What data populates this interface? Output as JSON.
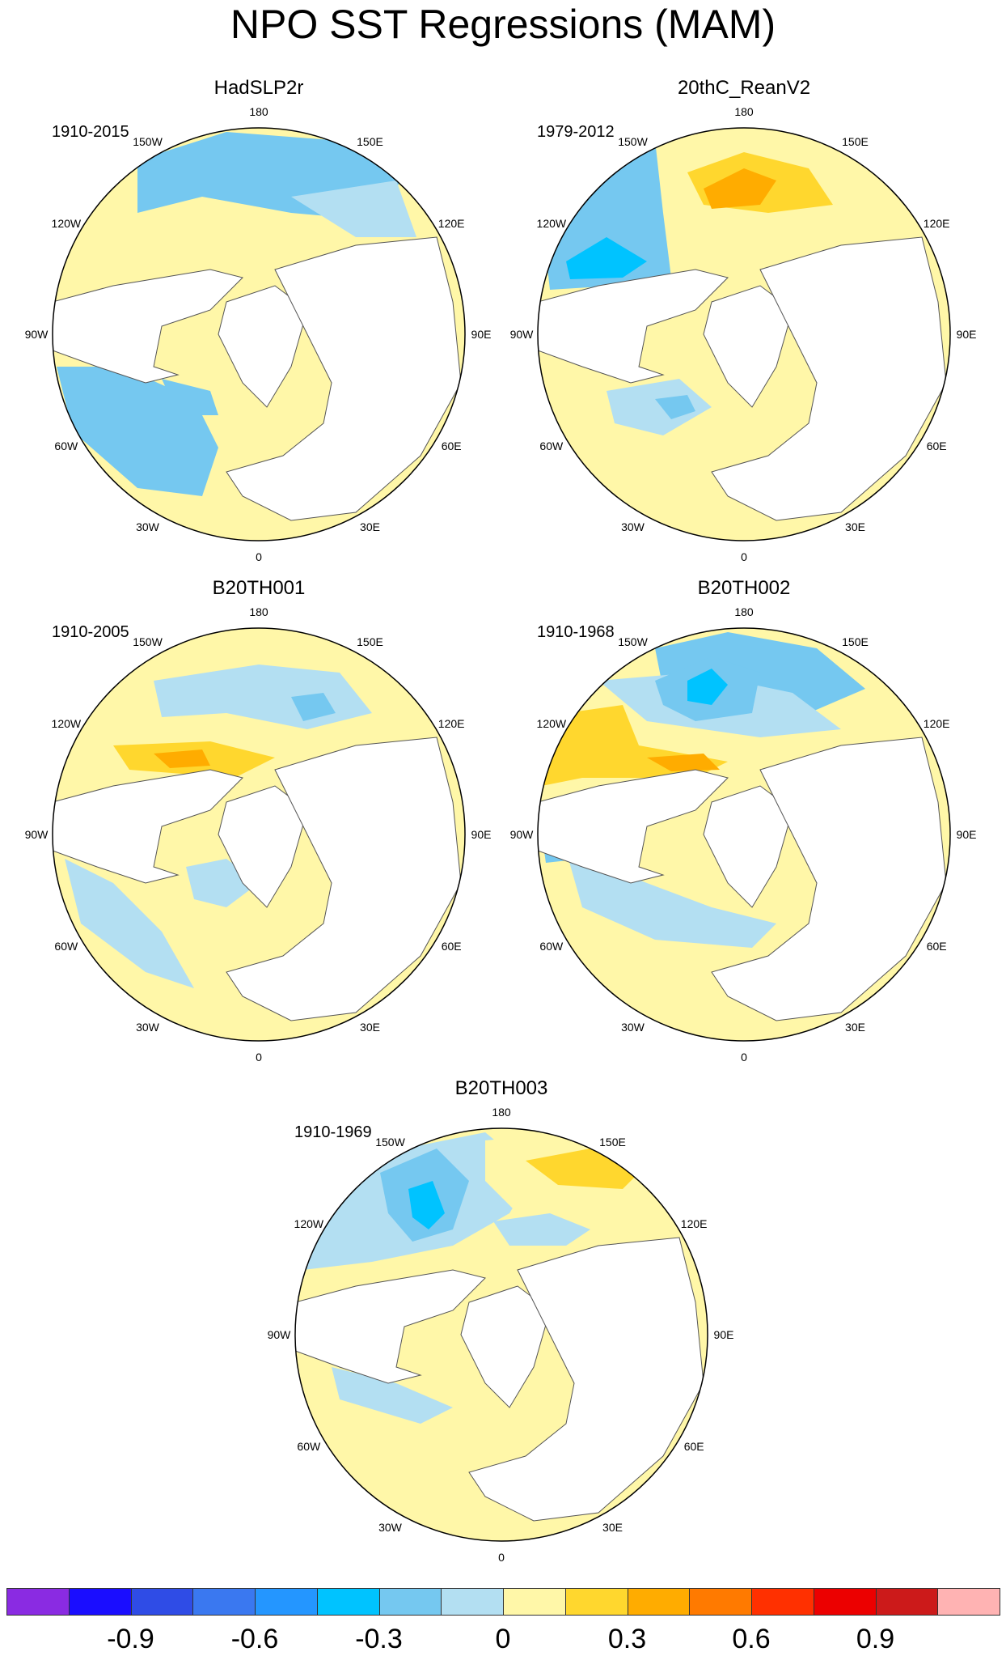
{
  "title": "NPO SST Regressions (MAM)",
  "panels": [
    {
      "name": "HadSLP2r",
      "period": "1910-2015"
    },
    {
      "name": "20thC_ReanV2",
      "period": "1979-2012"
    },
    {
      "name": "B20TH001",
      "period": "1910-2005"
    },
    {
      "name": "B20TH002",
      "period": "1910-1968"
    },
    {
      "name": "B20TH003",
      "period": "1910-1969"
    }
  ],
  "longitude_labels": [
    "180",
    "150E",
    "120E",
    "90E",
    "60E",
    "30E",
    "0",
    "30W",
    "60W",
    "90W",
    "120W",
    "150W"
  ],
  "colorbar": {
    "colors": [
      "#8a2be2",
      "#1a0dff",
      "#2f4ce6",
      "#3a78f0",
      "#2496ff",
      "#00c3ff",
      "#75c8f0",
      "#b3dff2",
      "#fff7a8",
      "#ffd72e",
      "#ffac00",
      "#ff7a00",
      "#ff3000",
      "#ec0000",
      "#cc1a1a",
      "#ffb3b3"
    ],
    "tick_labels": [
      "-0.9",
      "-0.6",
      "-0.3",
      "0",
      "0.3",
      "0.6",
      "0.9"
    ]
  }
}
